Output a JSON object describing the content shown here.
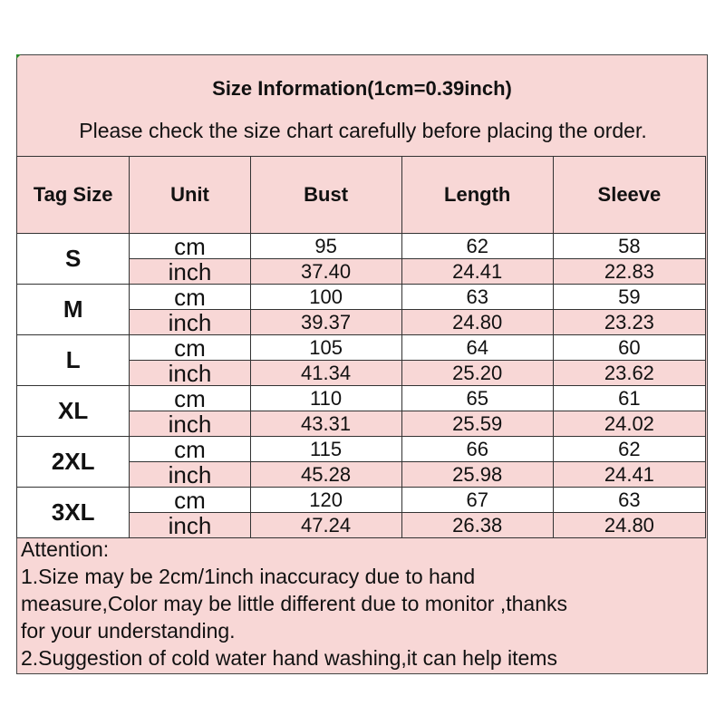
{
  "title": "Size Information(1cm=0.39inch)",
  "subtitle": "Please check the size chart carefully before placing the order.",
  "headers": [
    "Tag Size",
    "Unit",
    "Bust",
    "Length",
    "Sleeve"
  ],
  "rows": [
    {
      "size": "S",
      "cm": [
        "cm",
        "95",
        "62",
        "58"
      ],
      "inch": [
        "inch",
        "37.40",
        "24.41",
        "22.83"
      ]
    },
    {
      "size": "M",
      "cm": [
        "cm",
        "100",
        "63",
        "59"
      ],
      "inch": [
        "inch",
        "39.37",
        "24.80",
        "23.23"
      ]
    },
    {
      "size": "L",
      "cm": [
        "cm",
        "105",
        "64",
        "60"
      ],
      "inch": [
        "inch",
        "41.34",
        "25.20",
        "23.62"
      ]
    },
    {
      "size": "XL",
      "cm": [
        "cm",
        "110",
        "65",
        "61"
      ],
      "inch": [
        "inch",
        "43.31",
        "25.59",
        "24.02"
      ]
    },
    {
      "size": "2XL",
      "cm": [
        "cm",
        "115",
        "66",
        "62"
      ],
      "inch": [
        "inch",
        "45.28",
        "25.98",
        "24.41"
      ]
    },
    {
      "size": "3XL",
      "cm": [
        "cm",
        "120",
        "67",
        "63"
      ],
      "inch": [
        "inch",
        "47.24",
        "26.38",
        "24.80"
      ]
    }
  ],
  "attention": "Attention:",
  "notes": [
    "1.Size may be 2cm/1inch inaccuracy due to hand",
    "measure,Color may be little different due to monitor ,thanks",
    "for your understanding.",
    "2.Suggestion of cold water hand washing,it can help items"
  ],
  "colors": {
    "pink": "#f8d7d6",
    "border": "#333333"
  }
}
